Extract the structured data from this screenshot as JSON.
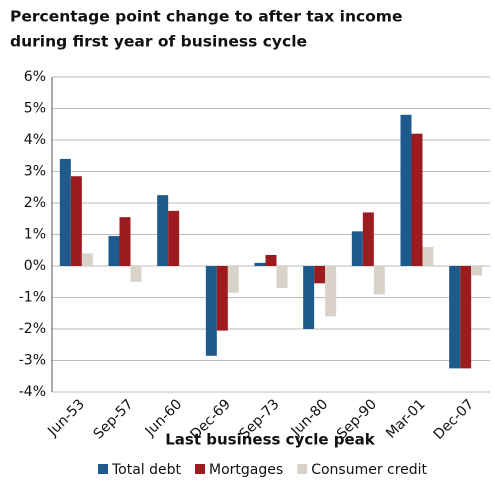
{
  "chart_data": {
    "type": "bar",
    "title": [
      "Percentage point change to after tax income",
      "during first year of business cycle"
    ],
    "x_label": "Last business cycle peak",
    "categories": [
      "Jun-53",
      "Sep-57",
      "Jun-60",
      "Dec-69",
      "Sep-73",
      "Jun-80",
      "Sep-90",
      "Mar-01",
      "Dec-07"
    ],
    "series": [
      {
        "name": "Total debt",
        "color": "#1f5a8c",
        "values": [
          3.4,
          0.95,
          2.25,
          -2.85,
          0.1,
          -2.0,
          1.1,
          4.8,
          -3.25
        ]
      },
      {
        "name": "Mortgages",
        "color": "#9b1b1e",
        "values": [
          2.85,
          1.55,
          1.75,
          -2.05,
          0.35,
          -0.55,
          1.7,
          4.2,
          -3.25
        ]
      },
      {
        "name": "Consumer credit",
        "color": "#d9d2c9",
        "values": [
          0.4,
          -0.5,
          0,
          -0.85,
          -0.7,
          -1.6,
          -0.9,
          0.6,
          -0.3
        ]
      }
    ],
    "ylim": [
      -4,
      6
    ],
    "yticks": [
      {
        "value": -4,
        "label": "-4%"
      },
      {
        "value": -3,
        "label": "-3%"
      },
      {
        "value": -2,
        "label": "-2%"
      },
      {
        "value": -1,
        "label": "-1%"
      },
      {
        "value": 0,
        "label": "0%"
      },
      {
        "value": 1,
        "label": "1%"
      },
      {
        "value": 2,
        "label": "2%"
      },
      {
        "value": 3,
        "label": "3%"
      },
      {
        "value": 4,
        "label": "4%"
      },
      {
        "value": 5,
        "label": "5%"
      },
      {
        "value": 6,
        "label": "6%"
      }
    ],
    "grid": true
  }
}
